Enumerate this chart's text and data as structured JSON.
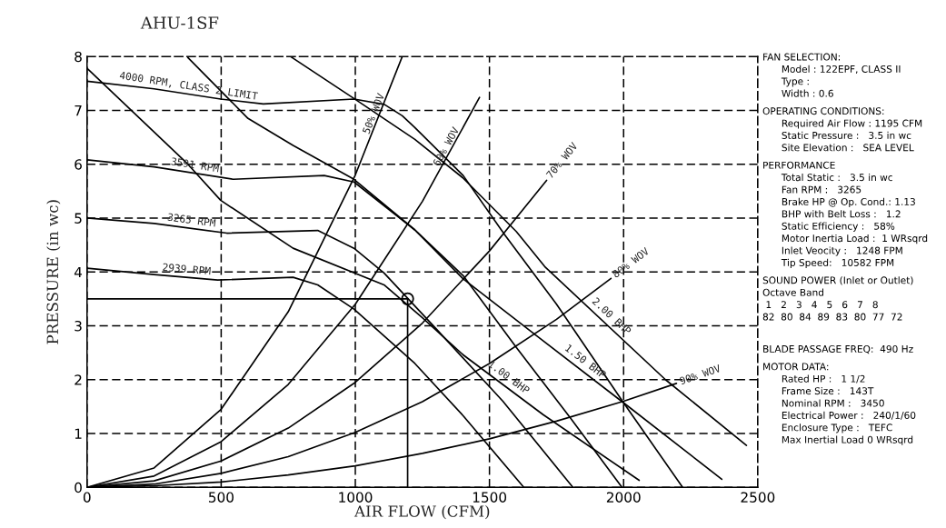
{
  "chart_data": {
    "type": "line",
    "title": "AHU-1SF",
    "xlabel": "AIR FLOW (CFM)",
    "ylabel": "PRESSURE (in wc)",
    "xlim": [
      0,
      2500
    ],
    "ylim": [
      0,
      8
    ],
    "xticks": [
      0,
      500,
      1000,
      1500,
      2000,
      2500
    ],
    "yticks": [
      0,
      1,
      2,
      3,
      4,
      5,
      6,
      7,
      8
    ],
    "grid": true,
    "legend": false,
    "marker": "none",
    "line_style": "solid",
    "series": [
      {
        "name": "4000 RPM, CLASS 2 LIMIT",
        "color": "#000000",
        "x": [
          0,
          250,
          498,
          657,
          995,
          1108,
          1175,
          1222,
          1402,
          1554,
          1750,
          2000,
          2220
        ],
        "values": [
          7.54,
          7.4,
          7.21,
          7.12,
          7.21,
          7.11,
          6.9,
          6.68,
          5.79,
          4.71,
          3.4,
          1.57,
          0
        ]
      },
      {
        "name": "3591 RPM",
        "color": "#000000",
        "x": [
          0,
          250,
          545,
          884,
          995,
          1222,
          1402,
          1600,
          1800,
          1994
        ],
        "values": [
          6.08,
          5.95,
          5.72,
          5.79,
          5.67,
          4.78,
          3.93,
          2.6,
          1.3,
          0
        ]
      },
      {
        "name": "3265 RPM",
        "color": "#000000",
        "x": [
          0,
          250,
          521,
          860,
          995,
          1107,
          1300,
          1550,
          1811
        ],
        "values": [
          5.0,
          4.9,
          4.72,
          4.77,
          4.44,
          3.98,
          2.95,
          1.6,
          0
        ]
      },
      {
        "name": "2939 RPM",
        "color": "#000000",
        "x": [
          0,
          250,
          487,
          768,
          860,
          995,
          1222,
          1402,
          1628
        ],
        "values": [
          4.07,
          3.95,
          3.85,
          3.9,
          3.76,
          3.31,
          2.3,
          1.33,
          0
        ]
      },
      {
        "name": "1.00 BHP",
        "color": "#000000",
        "x": [
          0,
          376,
          498,
          768,
          1107,
          1250,
          1402,
          1700,
          2058
        ],
        "values": [
          7.78,
          6.0,
          5.33,
          4.44,
          3.76,
          3.15,
          2.46,
          1.35,
          0.13
        ]
      },
      {
        "name": "1.50 BHP",
        "color": "#000000",
        "x": [
          376,
          600,
          768,
          995,
          1222,
          1402,
          1672,
          2000,
          2366
        ],
        "values": [
          7.98,
          6.85,
          6.35,
          5.72,
          4.78,
          3.87,
          2.83,
          1.57,
          0.15
        ]
      },
      {
        "name": "2.00 BHP",
        "color": "#000000",
        "x": [
          758,
          995,
          1222,
          1400,
          1600,
          1706,
          2156,
          2458
        ],
        "values": [
          8.0,
          7.22,
          6.46,
          5.75,
          4.75,
          4.1,
          2.0,
          0.78
        ]
      },
      {
        "name": "50% WOV",
        "color": "#000000",
        "x": [
          0,
          250,
          500,
          750,
          1000,
          1175
        ],
        "values": [
          0,
          0.36,
          1.45,
          3.26,
          5.8,
          8.0
        ]
      },
      {
        "name": "60% WOV",
        "color": "#000000",
        "x": [
          0,
          250,
          500,
          750,
          1000,
          1250,
          1463
        ],
        "values": [
          0,
          0.21,
          0.85,
          1.91,
          3.4,
          5.31,
          7.24
        ]
      },
      {
        "name": "70% WOV",
        "color": "#000000",
        "x": [
          0,
          250,
          500,
          750,
          1000,
          1250,
          1500,
          1713
        ],
        "values": [
          0,
          0.12,
          0.49,
          1.1,
          1.95,
          3.05,
          4.39,
          5.7
        ]
      },
      {
        "name": "80% WOV",
        "color": "#000000",
        "x": [
          0,
          250,
          500,
          750,
          1000,
          1250,
          1500,
          1750,
          1953
        ],
        "values": [
          0,
          0.06,
          0.26,
          0.57,
          1.02,
          1.59,
          2.3,
          3.12,
          3.88
        ]
      },
      {
        "name": "90% WOV",
        "color": "#000000",
        "x": [
          0,
          250,
          500,
          750,
          1000,
          1250,
          1500,
          1750,
          2000,
          2197
        ],
        "values": [
          0,
          0.03,
          0.1,
          0.23,
          0.4,
          0.63,
          0.9,
          1.23,
          1.6,
          1.93
        ]
      },
      {
        "color": "#000000",
        "x": [
          0,
          1195
        ],
        "values": [
          3.5,
          3.5
        ]
      },
      {
        "color": "#000000",
        "x": [
          1195,
          1195
        ],
        "values": [
          0,
          3.5
        ]
      },
      {
        "type": "scatter",
        "marker": "circle",
        "color": "#000000",
        "x": [
          1195
        ],
        "values": [
          3.5
        ]
      }
    ],
    "annotations": [
      "FAN SELECTION:",
      "Model : 122EPF, CLASS II",
      "Type :",
      "Width : 0.6",
      "OPERATING CONDITIONS:",
      "Required Air Flow : 1195 CFM",
      "Static Pressure :   3.5 in wc",
      "Site Elevation :   SEA LEVEL",
      "PERFORMANCE",
      "Total Static :   3.5 in wc",
      "Fan RPM :   3265",
      "Brake HP @ Op. Cond.: 1.13",
      "BHP with Belt Loss :   1.2",
      "Static Efficiency :   58%",
      "Motor Inertia Load :  1 WRsqrd",
      "Inlet Veocity :   1248 FPM",
      "Tip Speed:   10582 FPM",
      "SOUND POWER (Inlet or Outlet)",
      "Octave Band",
      " 1   2   3   4   5   6   7   8",
      "82  80  84  89  83  80  77  72",
      "BLADE PASSAGE FREQ:  490 Hz",
      "MOTOR DATA:",
      "Rated HP :   1 1/2",
      "Frame Size :   143T",
      "Nominal RPM :   3450",
      "Electrical Power :   240/1/60",
      "Enclosure Type :   TEFC",
      "Max Inertial Load 0 WRsqrd"
    ]
  }
}
